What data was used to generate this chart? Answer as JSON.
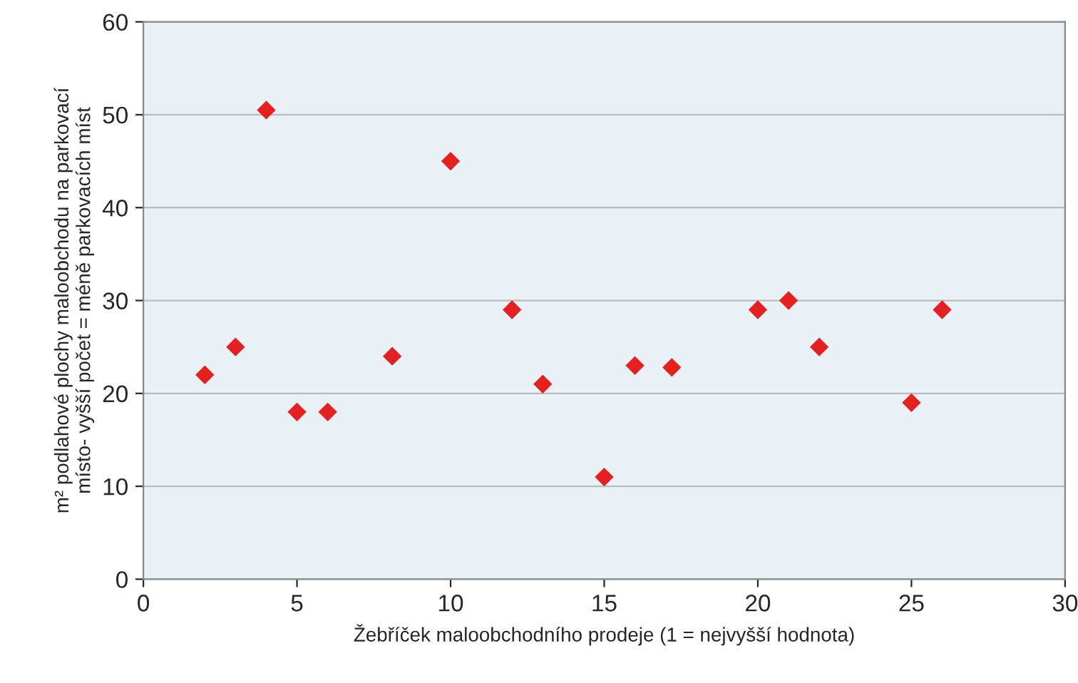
{
  "chart_data": {
    "type": "scatter",
    "xlabel": "Žebříček maloobchodního prodeje (1 = nejvyšší hodnota)",
    "ylabel": "m² podlahové plochy maloobchodu na parkovací\nmísto- vyšší počet = méně parkovacích míst",
    "x": [
      2,
      3,
      4,
      5,
      6,
      8.1,
      10,
      12,
      13,
      15,
      16,
      17.2,
      20,
      21,
      22,
      25,
      26
    ],
    "series": [
      {
        "color": "#e32121",
        "values": [
          22,
          25,
          50.5,
          18,
          18,
          24,
          45,
          29,
          21,
          11,
          23,
          22.8,
          29,
          30,
          25,
          19,
          29
        ]
      }
    ],
    "xlim": [
      0,
      30
    ],
    "xticks": [
      0,
      5,
      10,
      15,
      20,
      25,
      30
    ],
    "ylim": [
      0,
      60
    ],
    "yticks": [
      0,
      10,
      20,
      30,
      40,
      50,
      60
    ],
    "grid": "y",
    "marker": "diamond",
    "legend": false
  }
}
